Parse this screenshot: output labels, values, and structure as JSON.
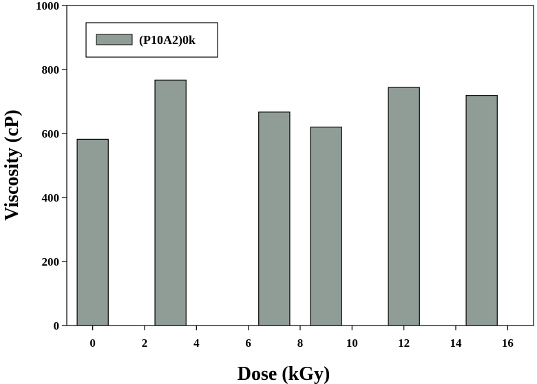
{
  "chart_data": {
    "type": "bar",
    "x": [
      0,
      3,
      7,
      9,
      12,
      15
    ],
    "values": [
      582,
      767,
      667,
      620,
      744,
      719
    ],
    "series_name": "(P10A2)0k",
    "xlabel": "Dose (kGy)",
    "ylabel": "Viscosity (cP)",
    "xlim": [
      -1,
      17
    ],
    "ylim": [
      0,
      1000
    ],
    "xticks": [
      0,
      2,
      4,
      6,
      8,
      10,
      12,
      14,
      16
    ],
    "yticks": [
      0,
      200,
      400,
      600,
      800,
      1000
    ],
    "grid": false,
    "legend_position": "top-left",
    "bar_color": "#909d97",
    "bar_edge_color": "#000000"
  }
}
